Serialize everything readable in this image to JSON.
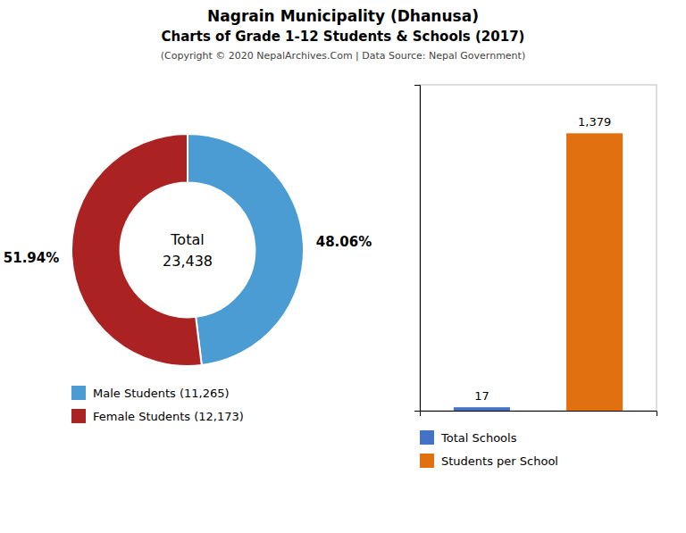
{
  "chart_data": [
    {
      "type": "pie",
      "title": "Nagrain Municipality (Dhanusa)",
      "subtitle": "Charts of Grade 1-12 Students & Schools (2017)",
      "annotations": [
        "(Copyright © 2020 NepalArchives.Com | Data Source: Nepal Government)",
        "Total",
        "23,438"
      ],
      "categories": [
        "Male Students (11,265)",
        "Female Students (12,173)"
      ],
      "values": [
        48.06,
        51.94
      ],
      "value_labels": [
        "48.06%",
        "51.94%"
      ],
      "data_labels": true,
      "colors": [
        "#4b9cd3",
        "#aa2222"
      ],
      "legend": "lower left"
    },
    {
      "type": "bar",
      "categories": [
        "Total Schools",
        "Students per School"
      ],
      "values": [
        17,
        1379
      ],
      "value_labels": [
        "17",
        "1,379"
      ],
      "data_labels": true,
      "colors": [
        "#4472c4",
        "#e07010"
      ],
      "ylim": [
        0,
        1620
      ],
      "tick_labels": false,
      "grid": false,
      "legend": "lower left"
    }
  ]
}
